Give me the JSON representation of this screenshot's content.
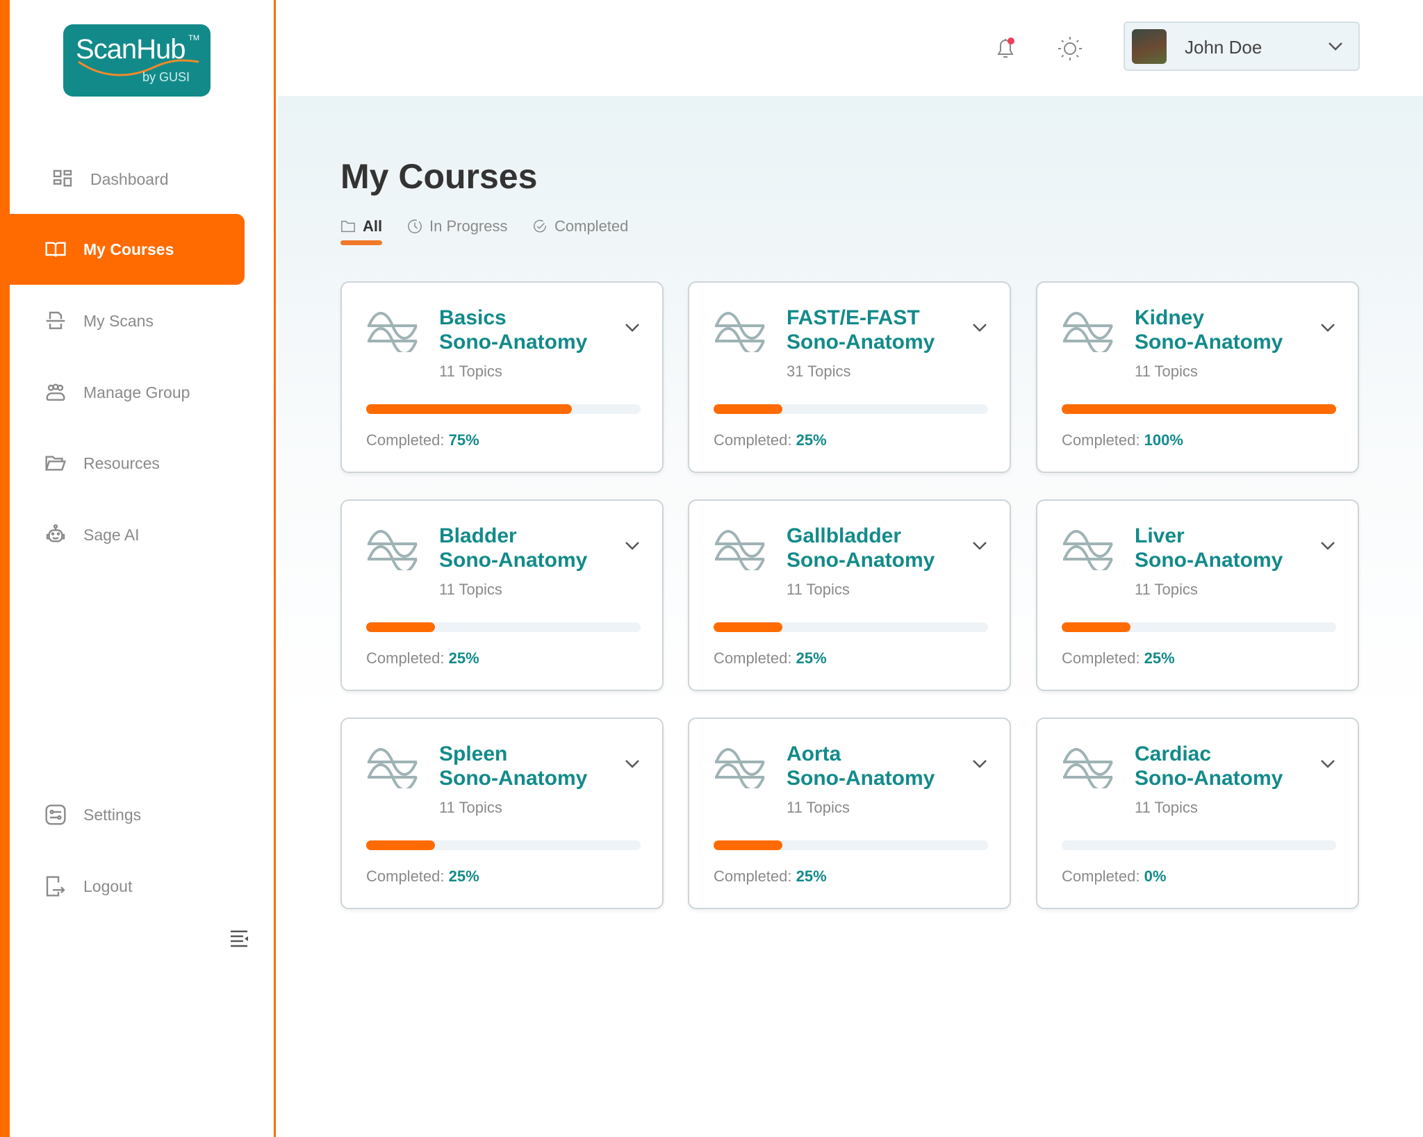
{
  "brand": {
    "name": "ScanHub",
    "tm": "TM",
    "sub": "by GUSI",
    "accent": "#ff6b00",
    "teal": "#138a8a"
  },
  "sidebar": {
    "items": [
      {
        "label": "Dashboard",
        "icon": "dashboard-icon"
      },
      {
        "label": "My Courses",
        "icon": "book-icon",
        "active": true
      },
      {
        "label": "My Scans",
        "icon": "scan-icon"
      },
      {
        "label": "Manage Group",
        "icon": "group-icon"
      },
      {
        "label": "Resources",
        "icon": "folder-icon"
      },
      {
        "label": "Sage AI",
        "icon": "robot-icon"
      },
      {
        "label": "Settings",
        "icon": "settings-icon"
      },
      {
        "label": "Logout",
        "icon": "logout-icon"
      }
    ]
  },
  "header": {
    "user": "John Doe",
    "notification_dot": true
  },
  "main": {
    "title": "My Courses",
    "tabs": [
      {
        "label": "All",
        "active": true
      },
      {
        "label": "In Progress"
      },
      {
        "label": "Completed"
      }
    ]
  },
  "courses": [
    {
      "line1": "Basics",
      "line2": "Sono-Anatomy",
      "topics": "11 Topics",
      "completed_label": "Completed:",
      "progress": 75
    },
    {
      "line1": "FAST/E-FAST",
      "line2": "Sono-Anatomy",
      "topics": "31 Topics",
      "completed_label": "Completed:",
      "progress": 25
    },
    {
      "line1": "Kidney",
      "line2": "Sono-Anatomy",
      "topics": "11 Topics",
      "completed_label": "Completed:",
      "progress": 100
    },
    {
      "line1": "Bladder",
      "line2": "Sono-Anatomy",
      "topics": "11 Topics",
      "completed_label": "Completed:",
      "progress": 25
    },
    {
      "line1": "Gallbladder",
      "line2": "Sono-Anatomy",
      "topics": "11 Topics",
      "completed_label": "Completed:",
      "progress": 25
    },
    {
      "line1": "Liver",
      "line2": "Sono-Anatomy",
      "topics": "11 Topics",
      "completed_label": "Completed:",
      "progress": 25
    },
    {
      "line1": "Spleen",
      "line2": "Sono-Anatomy",
      "topics": "11 Topics",
      "completed_label": "Completed:",
      "progress": 25
    },
    {
      "line1": "Aorta",
      "line2": "Sono-Anatomy",
      "topics": "11 Topics",
      "completed_label": "Completed:",
      "progress": 25
    },
    {
      "line1": "Cardiac",
      "line2": "Sono-Anatomy",
      "topics": "11 Topics",
      "completed_label": "Completed:",
      "progress": 0
    }
  ]
}
